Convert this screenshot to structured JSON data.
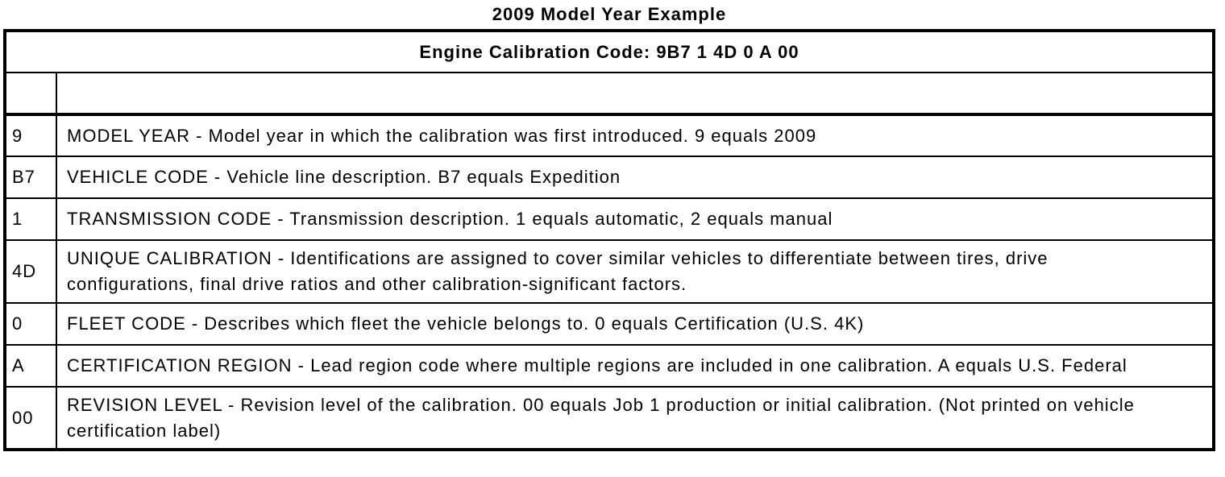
{
  "page": {
    "title": "2009 Model Year Example"
  },
  "table": {
    "header": "Engine Calibration Code: 9B7 1 4D 0 A 00",
    "rows": [
      {
        "code": "",
        "description": ""
      },
      {
        "code": "9",
        "description": "MODEL YEAR - Model year in which the calibration was first introduced. 9 equals 2009"
      },
      {
        "code": "B7",
        "description": "VEHICLE CODE - Vehicle line description. B7 equals Expedition"
      },
      {
        "code": "1",
        "description": "TRANSMISSION CODE - Transmission description. 1 equals automatic, 2 equals manual"
      },
      {
        "code": "4D",
        "description": "UNIQUE CALIBRATION - Identifications are assigned to cover similar vehicles to differentiate between tires, drive configurations, final drive ratios and other calibration-significant factors."
      },
      {
        "code": "0",
        "description": "FLEET CODE - Describes which fleet the vehicle belongs to. 0 equals Certification (U.S. 4K)"
      },
      {
        "code": "A",
        "description": "CERTIFICATION REGION - Lead region code where multiple regions are included in one calibration. A equals U.S. Federal"
      },
      {
        "code": "00",
        "description": "REVISION LEVEL - Revision level of the calibration. 00 equals Job 1 production or initial calibration. (Not printed on vehicle certification label)"
      }
    ]
  }
}
